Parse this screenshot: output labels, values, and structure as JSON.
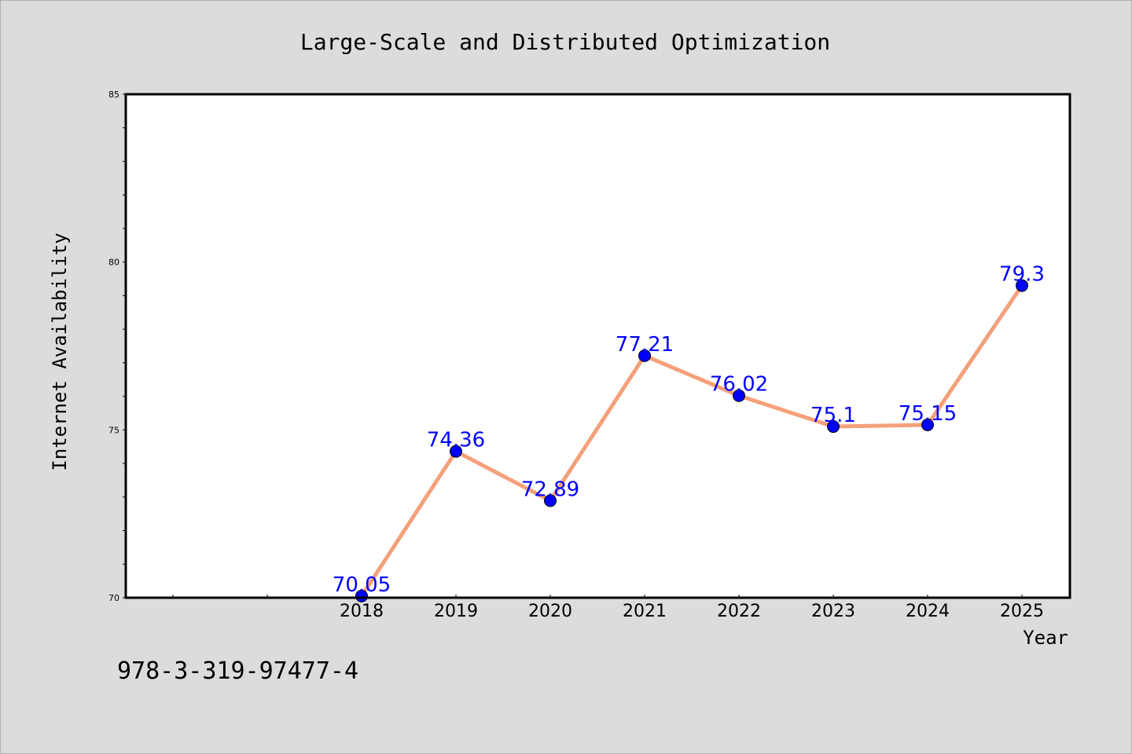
{
  "chart_data": {
    "type": "line",
    "title": "Large-Scale and Distributed Optimization",
    "xlabel": "Year",
    "ylabel": "Internet Availability",
    "categories": [
      "2018",
      "2019",
      "2020",
      "2021",
      "2022",
      "2023",
      "2024",
      "2025"
    ],
    "values": [
      70.05,
      74.36,
      72.89,
      77.21,
      76.02,
      75.1,
      75.15,
      79.3
    ],
    "data_labels": [
      "70.05",
      "74.36",
      "72.89",
      "77.21",
      "76.02",
      "75.1",
      "75.15",
      "79.3"
    ],
    "ylim": [
      70,
      85
    ],
    "y_ticks": [
      "70",
      "75",
      "80",
      "85"
    ],
    "grid": false,
    "legend": "none",
    "colors": {
      "line": "#f4a07a",
      "marker": "#0000ff",
      "label": "#0000ff"
    }
  },
  "footer": {
    "isbn": "978-3-319-97477-4"
  }
}
